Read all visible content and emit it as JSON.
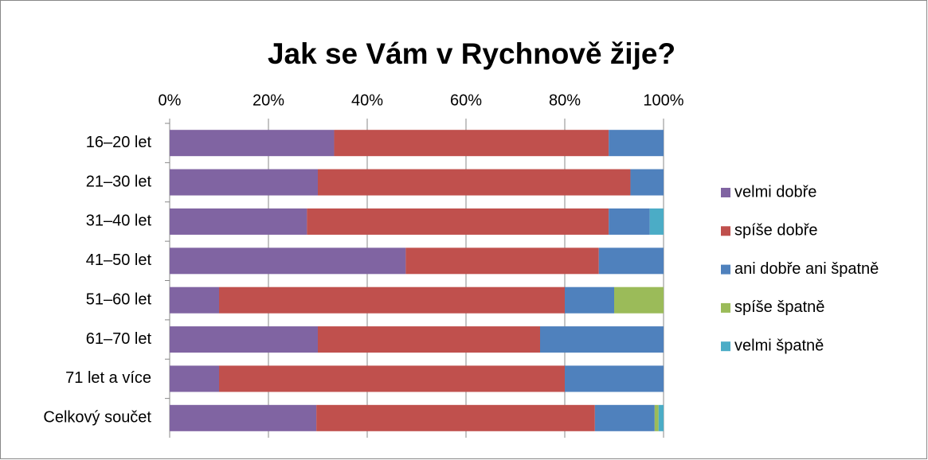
{
  "chart_data": {
    "type": "stacked-bar-horizontal",
    "title": "Jak se Vám v Rychnově žije?",
    "categories": [
      "16–20 let",
      "21–30 let",
      "31–40 let",
      "41–50 let",
      "51–60 let",
      "61–70 let",
      "71 let a více",
      "Celkový součet"
    ],
    "series": [
      {
        "name": "velmi dobře",
        "color": "#8064a2",
        "values": [
          33.3,
          30,
          27.8,
          47.8,
          10,
          30,
          10,
          29.7
        ]
      },
      {
        "name": "spíše dobře",
        "color": "#c0504d",
        "values": [
          55.6,
          63.3,
          61.1,
          39.1,
          70,
          45,
          70,
          56.4
        ]
      },
      {
        "name": "ani dobře ani špatně",
        "color": "#4f81bd",
        "values": [
          11.1,
          6.7,
          8.3,
          13.1,
          10,
          25,
          20,
          12.1
        ]
      },
      {
        "name": "spíše špatně",
        "color": "#9bbb59",
        "values": [
          0,
          0,
          0,
          0,
          10,
          0,
          0,
          0.8
        ]
      },
      {
        "name": "velmi špatně",
        "color": "#4bacc6",
        "values": [
          0,
          0,
          2.8,
          0,
          0,
          0,
          0,
          1.0
        ]
      }
    ],
    "xlim": [
      0,
      100
    ],
    "xticks": [
      {
        "value": 0,
        "label": "0%"
      },
      {
        "value": 20,
        "label": "20%"
      },
      {
        "value": 40,
        "label": "40%"
      },
      {
        "value": 60,
        "label": "60%"
      },
      {
        "value": 80,
        "label": "80%"
      },
      {
        "value": 100,
        "label": "100%"
      }
    ],
    "grid": true,
    "legend": "right"
  }
}
